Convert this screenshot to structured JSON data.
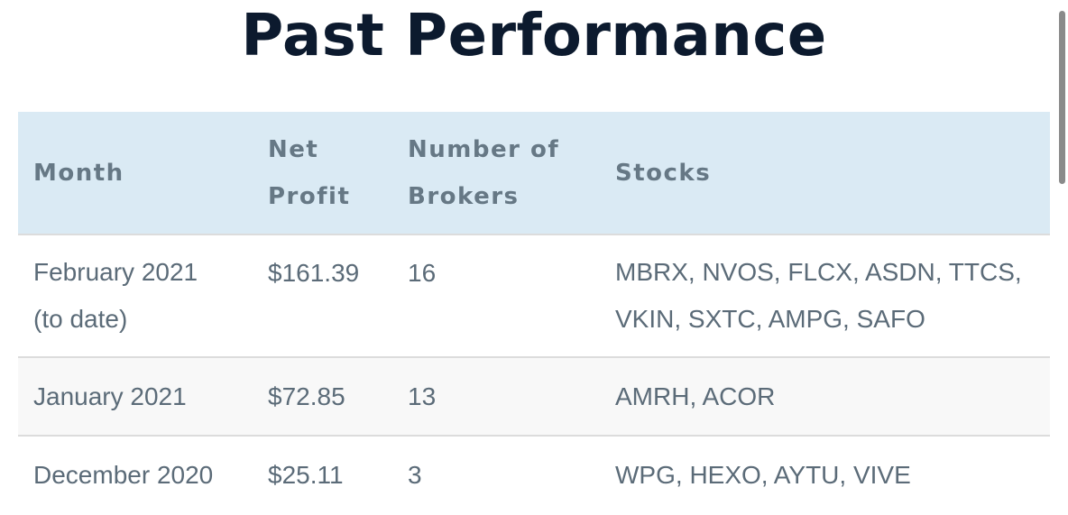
{
  "page": {
    "title": "Past Performance"
  },
  "table": {
    "headers": {
      "month": "Month",
      "net_profit_line1": "Net",
      "net_profit_line2": "Profit",
      "brokers_line1": "Number of",
      "brokers_line2": "Brokers",
      "stocks": "Stocks"
    },
    "rows": [
      {
        "month_line1": "February 2021",
        "month_line2": "(to date)",
        "net_profit": "$161.39",
        "brokers": "16",
        "stocks_line1": "MBRX, NVOS, FLCX, ASDN, TTCS,",
        "stocks_line2": "VKIN, SXTC, AMPG, SAFO"
      },
      {
        "month": "January 2021",
        "net_profit": "$72.85",
        "brokers": "13",
        "stocks": "AMRH, ACOR"
      },
      {
        "month": "December 2020",
        "net_profit": "$25.11",
        "brokers": "3",
        "stocks": "WPG, HEXO, AYTU, VIVE"
      }
    ]
  }
}
